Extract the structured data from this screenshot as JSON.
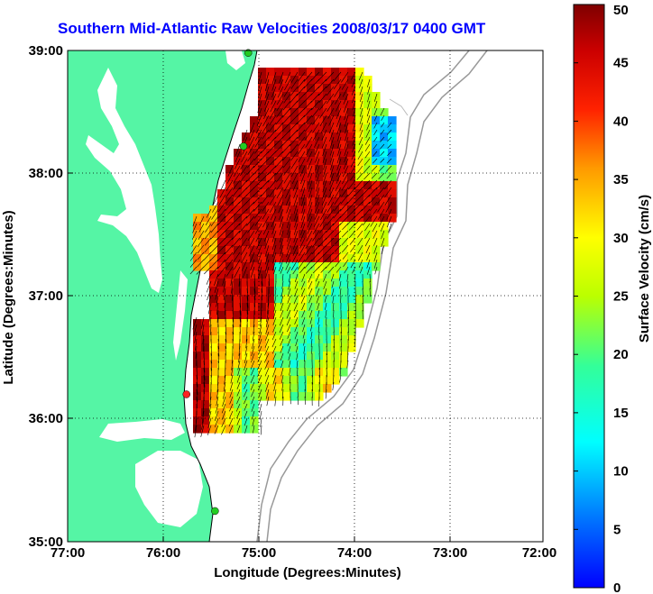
{
  "title": "Southern Mid-Atlantic Raw Velocities 2008/03/17 0400 GMT",
  "map": {
    "xlabel": "Longitude (Degrees:Minutes)",
    "ylabel": "Latitude (Degrees:Minutes)",
    "x_ticks": [
      "77:00",
      "76:00",
      "75:00",
      "74:00",
      "73:00",
      "72:00"
    ],
    "y_ticks": [
      "39:00",
      "38:00",
      "37:00",
      "36:00",
      "35:00"
    ],
    "lon_range": [
      -77,
      -72
    ],
    "lat_range": [
      35,
      39
    ],
    "land_color": "#55f5a5",
    "contour_color": "#999999",
    "stations": [
      {
        "lon": -75.1,
        "lat": 38.98,
        "color": "#22cc22"
      },
      {
        "lon": -75.15,
        "lat": 38.22,
        "color": "#22cc22"
      },
      {
        "lon": -75.75,
        "lat": 36.2,
        "color": "#ff2222"
      },
      {
        "lon": -75.45,
        "lat": 35.25,
        "color": "#22cc22"
      }
    ]
  },
  "colorbar": {
    "label": "Surface Velocity (cm/s)",
    "ticks": [
      "0",
      "5",
      "10",
      "15",
      "20",
      "25",
      "30",
      "35",
      "40",
      "45",
      "50"
    ],
    "range": [
      0,
      50
    ]
  }
}
